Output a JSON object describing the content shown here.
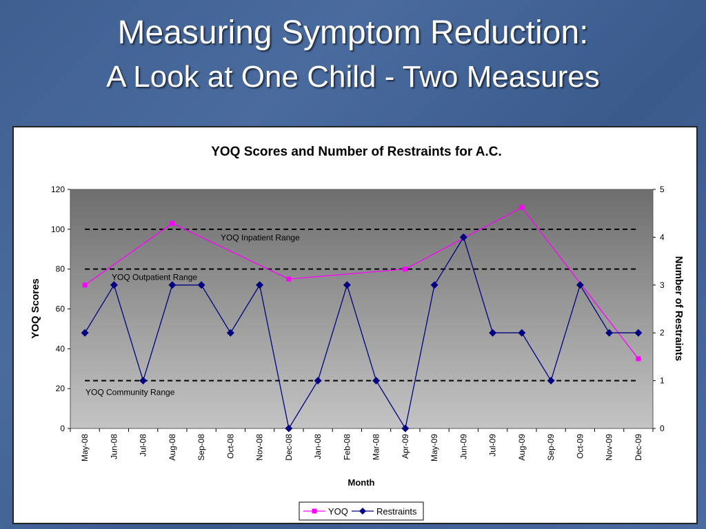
{
  "slide": {
    "title_line1": "Measuring Symptom Reduction:",
    "title_line2": "A Look at One Child - Two Measures"
  },
  "chart_data": {
    "type": "line",
    "title": "YOQ Scores and Number of Restraints for A.C.",
    "xlabel": "Month",
    "ylabel": "YOQ Scores",
    "y2label": "Number of Restraints",
    "categories": [
      "May-08",
      "Jun-08",
      "Jul-08",
      "Aug-08",
      "Sep-08",
      "Oct-08",
      "Nov-08",
      "Dec-08",
      "Jan-08",
      "Feb-08",
      "Mar-08",
      "Apr-09",
      "May-09",
      "Jun-09",
      "Jul-09",
      "Aug-09",
      "Sep-09",
      "Oct-09",
      "Nov-09",
      "Dec-09"
    ],
    "ylim": [
      0,
      120
    ],
    "yticks": [
      0,
      20,
      40,
      60,
      80,
      100,
      120
    ],
    "y2lim": [
      0,
      5
    ],
    "y2ticks": [
      0,
      1,
      2,
      3,
      4,
      5
    ],
    "series": [
      {
        "name": "YOQ",
        "axis": "left",
        "color": "#ff00ff",
        "marker": "square",
        "points": [
          [
            0,
            72
          ],
          [
            3,
            103
          ],
          [
            7,
            75
          ],
          [
            11,
            80
          ],
          [
            15,
            111
          ],
          [
            19,
            35
          ]
        ]
      },
      {
        "name": "Restraints",
        "axis": "right",
        "color": "#000080",
        "marker": "diamond",
        "values": [
          2,
          3,
          1,
          3,
          3,
          2,
          3,
          0,
          1,
          3,
          1,
          0,
          3,
          4,
          2,
          2,
          1,
          3,
          2,
          2
        ]
      }
    ],
    "reference_lines": [
      {
        "label": "YOQ Inpatient Range",
        "y": 100
      },
      {
        "label": "YOQ Outpatient Range",
        "y": 80
      },
      {
        "label": "YOQ Community Range",
        "y": 24
      }
    ],
    "legend": {
      "placement": "bottom-center",
      "entries": [
        "YOQ",
        "Restraints"
      ]
    },
    "grid": false
  }
}
